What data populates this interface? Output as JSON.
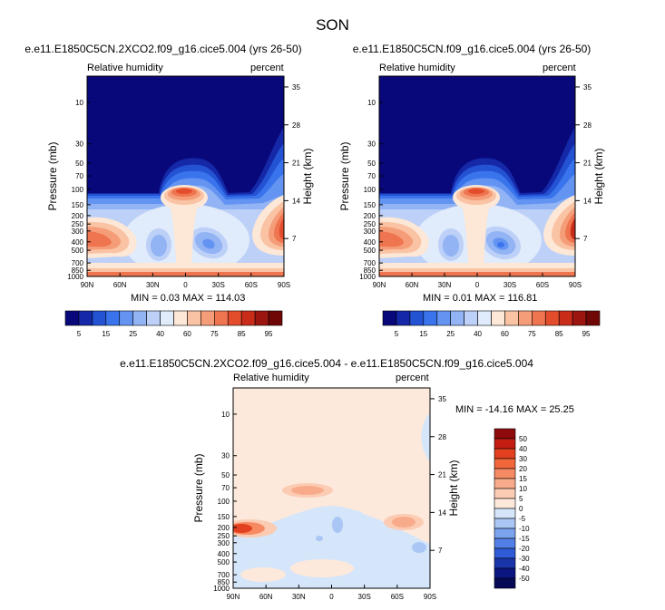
{
  "page": {
    "title": "SON",
    "diff_title": "e.e11.E1850C5CN.2XCO2.f09_g16.cice5.004 - e.e11.E1850C5CN.f09_g16.cice5.004"
  },
  "panels": [
    {
      "title": "e.e11.E1850C5CN.2XCO2.f09_g16.cice5.004 (yrs 26-50)",
      "left_label": "Relative humidity",
      "right_label": "percent",
      "stats": "MIN =  0.03  MAX = 114.03"
    },
    {
      "title": "e.e11.E1850C5CN.f09_g16.cice5.004 (yrs 26-50)",
      "left_label": "Relative humidity",
      "right_label": "percent",
      "stats": "MIN =  0.01  MAX = 116.81"
    },
    {
      "left_label": "Relative humidity",
      "right_label": "percent",
      "stats": "MIN = -14.16  MAX =  25.25"
    }
  ],
  "axes": {
    "ylabel_left": "Pressure (mb)",
    "ylabel_right": "Height (km)",
    "x_ticks": [
      "90N",
      "60N",
      "30N",
      "0",
      "30S",
      "60S",
      "90S"
    ],
    "pressure_ticks": [
      "10",
      "30",
      "50",
      "70",
      "100",
      "150",
      "200",
      "250",
      "300",
      "400",
      "500",
      "700",
      "850",
      "1000"
    ],
    "height_ticks": [
      "35",
      "28",
      "21",
      "14",
      "7"
    ]
  },
  "colorbar_abs": {
    "labels": [
      "5",
      "15",
      "25",
      "40",
      "60",
      "75",
      "85",
      "95"
    ],
    "colors": [
      "#08087a",
      "#1428a8",
      "#2352d3",
      "#3a74ec",
      "#6494f2",
      "#92b3f4",
      "#bdd0f7",
      "#e0ebfb",
      "#fde7d6",
      "#f9c3a4",
      "#f59d78",
      "#ef7450",
      "#e44d2c",
      "#c92d1a",
      "#9a160f",
      "#700707"
    ]
  },
  "colorbar_diff": {
    "labels": [
      "50",
      "40",
      "30",
      "20",
      "15",
      "10",
      "5",
      "0",
      "-5",
      "-10",
      "-15",
      "-20",
      "-30",
      "-40",
      "-50"
    ],
    "colors": [
      "#8f0b0b",
      "#c41e13",
      "#e2401f",
      "#f2663c",
      "#f68a62",
      "#f8ab8a",
      "#fbccb3",
      "#fde9db",
      "#d5e5fa",
      "#a9c6f4",
      "#7ba3ee",
      "#527fe6",
      "#2f5bd6",
      "#1a35aa",
      "#0b1680",
      "#060a55"
    ]
  },
  "chart_data": [
    {
      "type": "heatmap",
      "title": "e.e11.E1850C5CN.2XCO2.f09_g16.cice5.004 (yrs 26-50)",
      "xlabel": "",
      "ylabel": "Pressure (mb)",
      "ylabel_right": "Height (km)",
      "x": [
        "90N",
        "60N",
        "30N",
        "0",
        "30S",
        "60S",
        "90S"
      ],
      "y_pressure_mb": [
        10,
        30,
        50,
        70,
        100,
        150,
        200,
        250,
        300,
        400,
        500,
        700,
        850,
        1000
      ],
      "y_scale": "log",
      "units": "percent",
      "min": 0.03,
      "max": 114.03
    },
    {
      "type": "heatmap",
      "title": "e.e11.E1850C5CN.f09_g16.cice5.004 (yrs 26-50)",
      "xlabel": "",
      "ylabel": "Pressure (mb)",
      "ylabel_right": "Height (km)",
      "x": [
        "90N",
        "60N",
        "30N",
        "0",
        "30S",
        "60S",
        "90S"
      ],
      "y_pressure_mb": [
        10,
        30,
        50,
        70,
        100,
        150,
        200,
        250,
        300,
        400,
        500,
        700,
        850,
        1000
      ],
      "y_scale": "log",
      "units": "percent",
      "min": 0.01,
      "max": 116.81
    },
    {
      "type": "heatmap",
      "title": "e.e11.E1850C5CN.2XCO2.f09_g16.cice5.004 - e.e11.E1850C5CN.f09_g16.cice5.004",
      "xlabel": "",
      "ylabel": "Pressure (mb)",
      "ylabel_right": "Height (km)",
      "x": [
        "90N",
        "60N",
        "30N",
        "0",
        "30S",
        "60S",
        "90S"
      ],
      "y_pressure_mb": [
        10,
        30,
        50,
        70,
        100,
        150,
        200,
        250,
        300,
        400,
        500,
        700,
        850,
        1000
      ],
      "y_scale": "log",
      "units": "percent",
      "min": -14.16,
      "max": 25.25
    }
  ]
}
